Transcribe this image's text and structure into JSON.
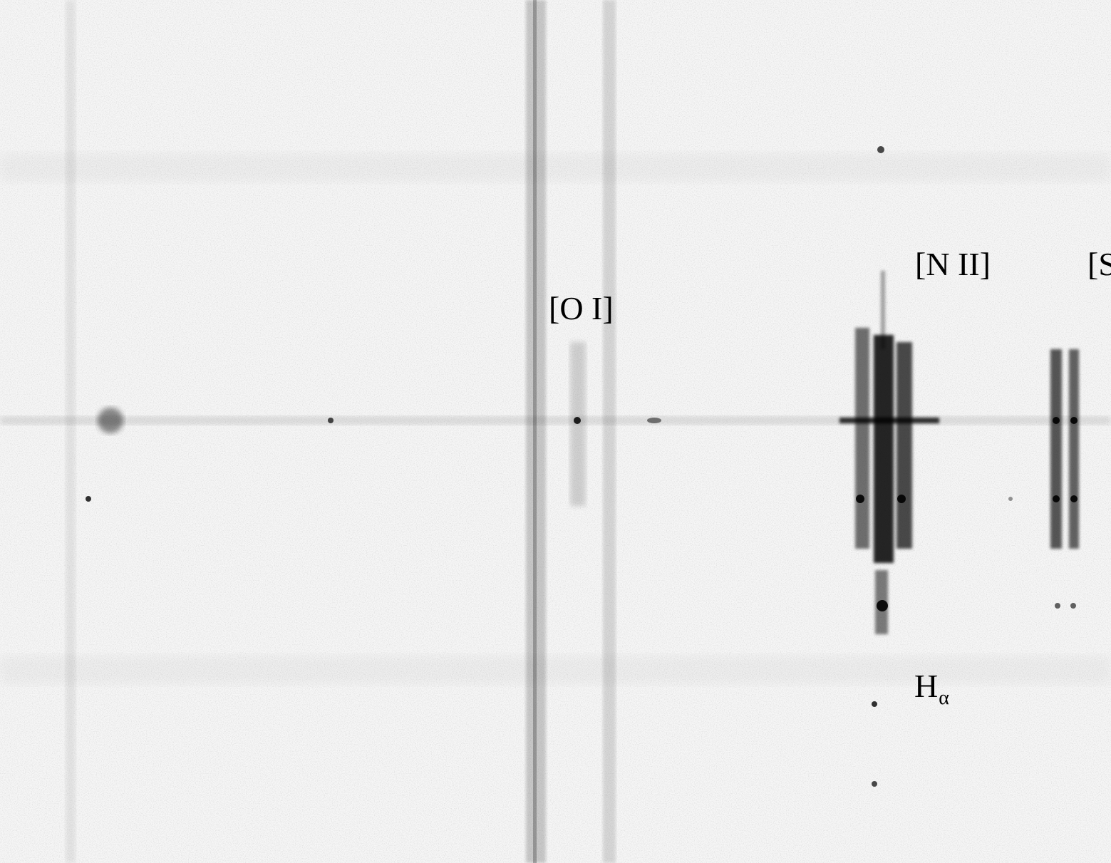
{
  "labels": {
    "oi": "[O I]",
    "nii": "[N II]",
    "sii": "[S",
    "h_alpha_main": "H",
    "h_alpha_sub": "α"
  },
  "colors": {
    "background": "#f6f6f6",
    "emission": "#000000"
  }
}
